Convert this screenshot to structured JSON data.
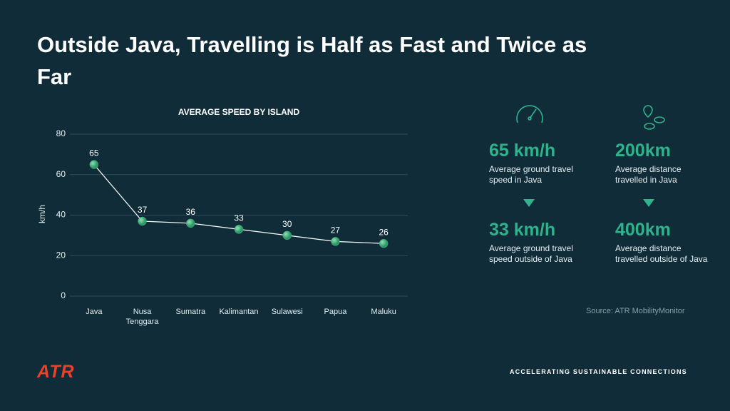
{
  "header": {
    "title": "Outside Java, Travelling is Half as Fast and Twice as Far"
  },
  "chart_data": {
    "type": "line",
    "title": "AVERAGE SPEED BY ISLAND",
    "y_label": "km/h",
    "categories": [
      "Java",
      "Nusa Tenggara",
      "Sumatra",
      "Kalimantan",
      "Sulawesi",
      "Papua",
      "Maluku"
    ],
    "values": [
      65,
      37,
      36,
      33,
      30,
      27,
      26
    ],
    "color": "#3fb27f",
    "ylim": [
      0,
      80
    ],
    "yticks": [
      0,
      20,
      40,
      60,
      80
    ],
    "grid": true
  },
  "stats": [
    {
      "value": "65 km/h",
      "label": "Average ground travel speed in Java"
    },
    {
      "value": "200km",
      "label": "Average distance travelled in Java"
    },
    {
      "value": "33 km/h",
      "label": "Average ground travel speed outside of Java"
    },
    {
      "value": "400km",
      "label": "Average distance travelled outside of Java"
    }
  ],
  "source": "Source: ATR MobilityMonitor",
  "footer": {
    "logo": "ATR",
    "tagline": "ACCELERATING SUSTAINABLE CONNECTIONS"
  }
}
